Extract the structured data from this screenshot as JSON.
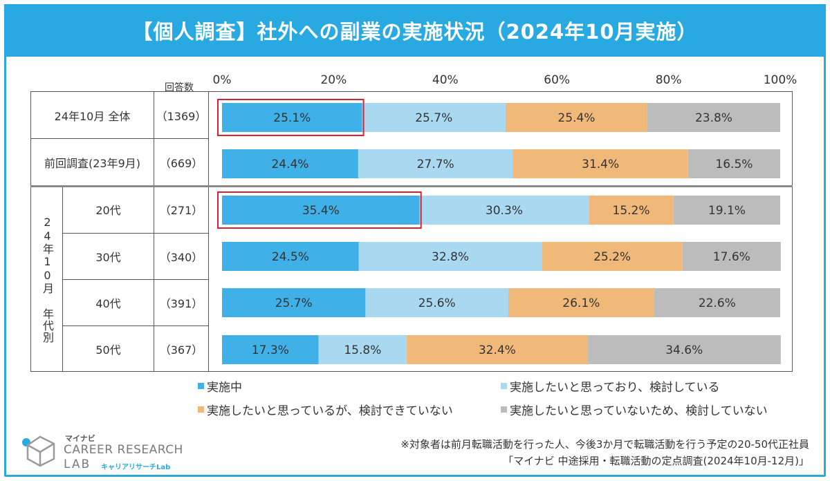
{
  "title": "【個人調査】社外への副業の実施状況（2024年10月実施）",
  "header": {
    "count_label": "回答数"
  },
  "chart_data": {
    "type": "bar",
    "orientation": "horizontal",
    "stacked": true,
    "xlim": [
      0,
      100
    ],
    "x_ticks": [
      "0%",
      "20%",
      "40%",
      "60%",
      "80%",
      "100%"
    ],
    "row_group_label": "24年10月 年代別",
    "rows": [
      {
        "label": "24年10月 全体",
        "n": "（1369）",
        "highlight": true,
        "values": [
          25.1,
          25.7,
          25.4,
          23.8
        ]
      },
      {
        "label": "前回調査(23年9月)",
        "n": "（669）",
        "highlight": false,
        "values": [
          24.4,
          27.7,
          31.4,
          16.5
        ]
      },
      {
        "label": "20代",
        "n": "（271）",
        "highlight": true,
        "values": [
          35.4,
          30.3,
          15.2,
          19.1
        ]
      },
      {
        "label": "30代",
        "n": "（340）",
        "highlight": false,
        "values": [
          24.5,
          32.8,
          25.2,
          17.6
        ]
      },
      {
        "label": "40代",
        "n": "（391）",
        "highlight": false,
        "values": [
          25.7,
          25.6,
          26.1,
          22.6
        ]
      },
      {
        "label": "50代",
        "n": "（367）",
        "highlight": false,
        "values": [
          17.3,
          15.8,
          32.4,
          34.6
        ]
      }
    ],
    "series": [
      {
        "name": "実施中",
        "color": "#3fb0e8"
      },
      {
        "name": "実施したいと思っており、検討している",
        "color": "#a9d9f0"
      },
      {
        "name": "実施したいと思っているが、検討できていない",
        "color": "#f0b97a"
      },
      {
        "name": "実施したいと思っていないため、検討していない",
        "color": "#bcbcbc"
      }
    ],
    "highlight_color": "#d9202c"
  },
  "footer": {
    "note1": "※対象者は前月転職活動を行った人、今後3か月で転職活動を行う予定の20-50代正社員",
    "note2": "「マイナビ 中途採用・転職活動の定点調査(2024年10月-12月)」"
  },
  "logo": {
    "small": "マイナビ",
    "main": "CAREER RESEARCH",
    "lab": "LAB",
    "kana": "キャリアリサーチLab"
  }
}
